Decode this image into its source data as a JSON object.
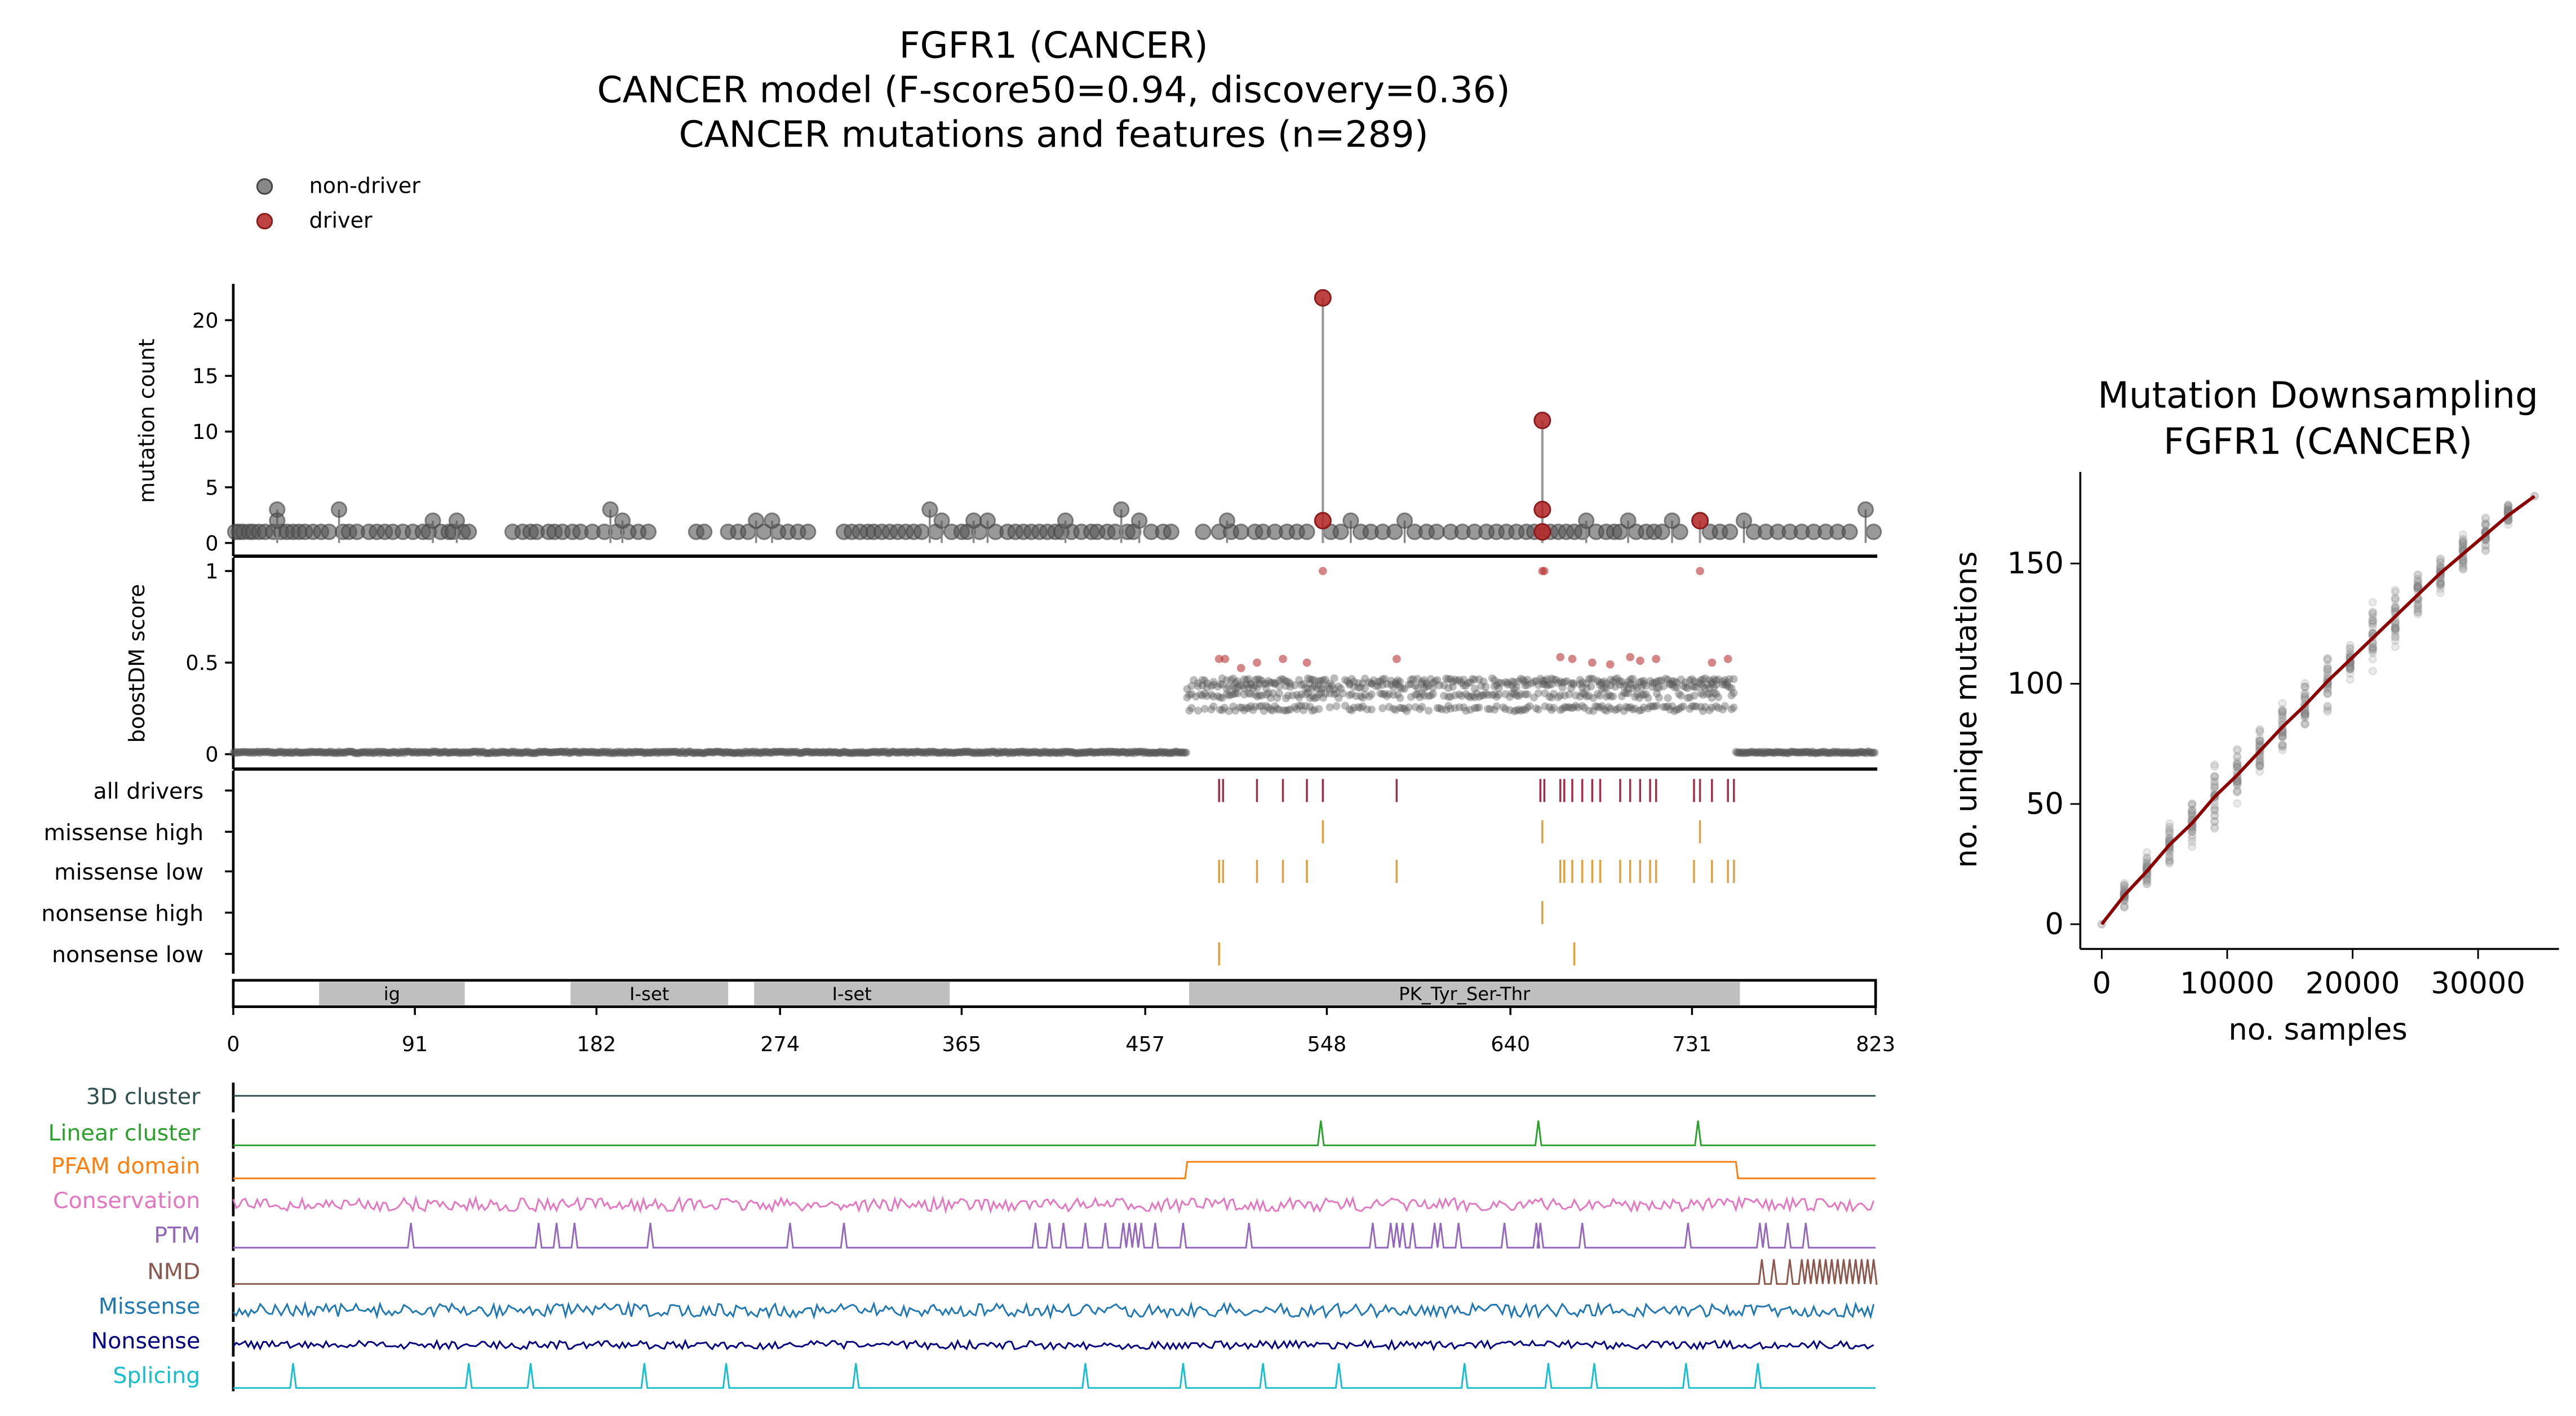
{
  "title": {
    "line1": "FGFR1 (CANCER)",
    "line2": "CANCER model (F-score50=0.94, discovery=0.36)",
    "line3": "CANCER mutations and features (n=289)"
  },
  "legend": {
    "non_driver": "non-driver",
    "driver": "driver"
  },
  "colors": {
    "non_driver": "#555555",
    "driver": "#b22222",
    "fit_line": "#8b0000",
    "missense_ticks": "#e0a040",
    "driver_ticks": "#a0304a"
  },
  "chart_data": [
    {
      "type": "scatter",
      "subtype": "lollipop",
      "ylabel": "mutation count",
      "xlim": [
        0,
        823
      ],
      "ylim": [
        0,
        23
      ],
      "yticks": [
        "0",
        "5",
        "10",
        "15",
        "20"
      ],
      "drivers": [
        {
          "pos": 546,
          "count": 22
        },
        {
          "pos": 546,
          "count": 2
        },
        {
          "pos": 656,
          "count": 11
        },
        {
          "pos": 656,
          "count": 3
        },
        {
          "pos": 656,
          "count": 1
        },
        {
          "pos": 735,
          "count": 2
        }
      ],
      "non_drivers_multi": [
        {
          "pos": 22,
          "count": 3
        },
        {
          "pos": 22,
          "count": 2
        },
        {
          "pos": 53,
          "count": 3
        },
        {
          "pos": 100,
          "count": 2
        },
        {
          "pos": 112,
          "count": 2
        },
        {
          "pos": 189,
          "count": 3
        },
        {
          "pos": 195,
          "count": 2
        },
        {
          "pos": 262,
          "count": 2
        },
        {
          "pos": 270,
          "count": 2
        },
        {
          "pos": 349,
          "count": 3
        },
        {
          "pos": 355,
          "count": 2
        },
        {
          "pos": 371,
          "count": 2
        },
        {
          "pos": 378,
          "count": 2
        },
        {
          "pos": 417,
          "count": 2
        },
        {
          "pos": 445,
          "count": 3
        },
        {
          "pos": 454,
          "count": 2
        },
        {
          "pos": 498,
          "count": 2
        },
        {
          "pos": 560,
          "count": 2
        },
        {
          "pos": 587,
          "count": 2
        },
        {
          "pos": 678,
          "count": 2
        },
        {
          "pos": 699,
          "count": 2
        },
        {
          "pos": 721,
          "count": 2
        },
        {
          "pos": 757,
          "count": 2
        },
        {
          "pos": 818,
          "count": 3
        }
      ],
      "non_drivers_single": [
        1,
        3,
        5,
        8,
        10,
        13,
        16,
        20,
        24,
        27,
        30,
        33,
        36,
        40,
        44,
        48,
        55,
        58,
        62,
        68,
        72,
        76,
        80,
        85,
        90,
        95,
        98,
        104,
        108,
        110,
        115,
        118,
        140,
        145,
        149,
        152,
        158,
        161,
        165,
        170,
        174,
        180,
        186,
        192,
        198,
        203,
        208,
        232,
        236,
        248,
        253,
        258,
        266,
        273,
        278,
        283,
        288,
        306,
        310,
        314,
        318,
        321,
        325,
        329,
        333,
        337,
        341,
        345,
        352,
        360,
        365,
        368,
        374,
        382,
        388,
        392,
        396,
        400,
        404,
        408,
        412,
        415,
        420,
        425,
        430,
        433,
        438,
        442,
        448,
        451,
        460,
        466,
        470,
        486,
        494,
        500,
        505,
        512,
        516,
        522,
        528,
        533,
        538,
        550,
        555,
        565,
        570,
        576,
        582,
        592,
        598,
        603,
        610,
        616,
        622,
        628,
        633,
        638,
        643,
        648,
        652,
        660,
        664,
        668,
        672,
        676,
        683,
        688,
        692,
        695,
        703,
        708,
        712,
        716,
        725,
        740,
        745,
        750,
        762,
        768,
        774,
        780,
        786,
        792,
        798,
        804,
        810,
        822
      ],
      "series": [
        {
          "name": "non-driver"
        },
        {
          "name": "driver"
        }
      ]
    },
    {
      "type": "scatter",
      "ylabel": "boostDM score",
      "xlim": [
        0,
        823
      ],
      "ylim": [
        0,
        1
      ],
      "yticks": [
        "0",
        "0.5",
        "1"
      ],
      "driver_points": [
        {
          "pos": 546,
          "score": 1.0
        },
        {
          "pos": 656,
          "score": 1.0
        },
        {
          "pos": 657,
          "score": 1.0
        },
        {
          "pos": 735,
          "score": 1.0
        },
        {
          "pos": 494,
          "score": 0.52
        },
        {
          "pos": 497,
          "score": 0.52
        },
        {
          "pos": 505,
          "score": 0.47
        },
        {
          "pos": 513,
          "score": 0.5
        },
        {
          "pos": 526,
          "score": 0.52
        },
        {
          "pos": 538,
          "score": 0.5
        },
        {
          "pos": 583,
          "score": 0.52
        },
        {
          "pos": 665,
          "score": 0.53
        },
        {
          "pos": 671,
          "score": 0.52
        },
        {
          "pos": 681,
          "score": 0.5
        },
        {
          "pos": 690,
          "score": 0.49
        },
        {
          "pos": 700,
          "score": 0.53
        },
        {
          "pos": 705,
          "score": 0.51
        },
        {
          "pos": 713,
          "score": 0.52
        },
        {
          "pos": 741,
          "score": 0.5
        },
        {
          "pos": 749,
          "score": 0.52
        }
      ],
      "non_driver_bands": [
        {
          "from": 0,
          "to": 478,
          "score": 0.01
        },
        {
          "from": 478,
          "to": 753,
          "score": 0.4
        },
        {
          "from": 478,
          "to": 753,
          "score": 0.37
        },
        {
          "from": 478,
          "to": 753,
          "score": 0.32
        },
        {
          "from": 478,
          "to": 753,
          "score": 0.25
        },
        {
          "from": 753,
          "to": 823,
          "score": 0.01
        }
      ]
    },
    {
      "type": "table",
      "subtype": "event-ticks",
      "rows": [
        {
          "label": "all drivers",
          "positions": [
            494,
            496,
            513,
            526,
            538,
            546,
            583,
            655,
            657,
            665,
            667,
            671,
            676,
            681,
            685,
            695,
            700,
            705,
            710,
            713,
            732,
            735,
            741,
            749,
            752
          ]
        },
        {
          "label": "missense high",
          "positions": [
            546,
            656,
            735
          ]
        },
        {
          "label": "missense low",
          "positions": [
            494,
            496,
            513,
            526,
            538,
            583,
            665,
            667,
            671,
            676,
            681,
            685,
            695,
            700,
            705,
            710,
            713,
            732,
            741,
            749,
            752
          ]
        },
        {
          "label": "nonsense high",
          "positions": [
            656
          ]
        },
        {
          "label": "nonsense low",
          "positions": [
            494,
            672
          ]
        }
      ],
      "domains": [
        {
          "name": "ig",
          "start": 43,
          "end": 116
        },
        {
          "name": "I-set",
          "start": 169,
          "end": 248
        },
        {
          "name": "I-set",
          "start": 261,
          "end": 359
        },
        {
          "name": "PK_Tyr_Ser-Thr",
          "start": 479,
          "end": 755
        }
      ],
      "xticks": [
        "0",
        "91",
        "182",
        "274",
        "365",
        "457",
        "548",
        "640",
        "731",
        "823"
      ]
    },
    {
      "type": "line",
      "subtype": "feature-tracks",
      "tracks": [
        {
          "label": "3D cluster",
          "color": "#2f4f4f",
          "peaks": []
        },
        {
          "label": "Linear cluster",
          "color": "#2ca02c",
          "peaks": [
            545,
            654,
            734
          ]
        },
        {
          "label": "PFAM domain",
          "color": "#ff7f0e",
          "range": [
            477,
            753
          ]
        },
        {
          "label": "Conservation",
          "color": "#e377c2",
          "noise": true
        },
        {
          "label": "PTM",
          "color": "#9467bd",
          "peaks": [
            89,
            153,
            162,
            171,
            209,
            279,
            306,
            402,
            409,
            416,
            427,
            437,
            446,
            449,
            452,
            455,
            462,
            476,
            509,
            571,
            580,
            583,
            586,
            591,
            602,
            605,
            614,
            637,
            653,
            655,
            676,
            729,
            765,
            768,
            779,
            788
          ]
        },
        {
          "label": "NMD",
          "color": "#8c564b",
          "peaks": [
            766,
            772,
            780,
            786,
            789,
            792,
            795,
            798,
            801,
            804,
            807,
            810,
            813,
            816,
            819,
            822
          ]
        },
        {
          "label": "Missense",
          "color": "#1f77b4",
          "noise": true
        },
        {
          "label": "Nonsense",
          "color": "#000080",
          "noise": true
        },
        {
          "label": "Splicing",
          "color": "#17becf",
          "peaks": [
            30,
            118,
            149,
            206,
            247,
            312,
            427,
            476,
            516,
            554,
            617,
            659,
            682,
            728,
            764
          ]
        }
      ]
    },
    {
      "type": "scatter",
      "title": "Mutation Downsampling\nFGFR1 (CANCER)",
      "title_line1": "Mutation Downsampling",
      "title_line2": "FGFR1 (CANCER)",
      "xlabel": "no. samples",
      "ylabel": "no. unique mutations",
      "xlim": [
        -2000,
        36500
      ],
      "ylim": [
        -10,
        185
      ],
      "xticks": [
        "0",
        "10000",
        "20000",
        "30000"
      ],
      "yticks": [
        "0",
        "50",
        "100",
        "150"
      ],
      "x": [
        0,
        1800,
        3600,
        5400,
        7200,
        9000,
        10800,
        12600,
        14400,
        16200,
        18000,
        19800,
        21600,
        23400,
        25200,
        27000,
        28800,
        30600,
        32400,
        34500
      ],
      "mean": [
        0,
        12,
        22,
        33,
        42,
        53,
        62,
        72,
        82,
        91,
        101,
        110,
        119,
        128,
        137,
        146,
        154,
        162,
        170,
        178
      ],
      "spread": [
        0,
        6,
        8,
        12,
        11,
        14,
        12,
        12,
        12,
        12,
        14,
        10,
        17,
        13,
        11,
        9,
        9,
        8,
        5,
        0
      ],
      "fit_color": "#8b0000"
    }
  ]
}
